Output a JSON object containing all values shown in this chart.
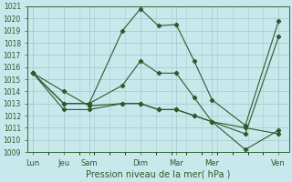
{
  "xlabel": "Pression niveau de la mer( hPa )",
  "background_color": "#c8e8ec",
  "grid_color": "#a8ccd0",
  "line_color": "#2d5a2d",
  "ylim": [
    1009,
    1021
  ],
  "yticks": [
    1009,
    1010,
    1011,
    1012,
    1013,
    1014,
    1015,
    1016,
    1017,
    1018,
    1019,
    1020,
    1021
  ],
  "xtick_labels": [
    "Lun",
    "Jeu",
    "Sam",
    "Dim",
    "Mar",
    "Mer",
    "Ven"
  ],
  "xtick_pos": [
    0,
    12,
    22,
    42,
    56,
    70,
    96
  ],
  "xlim": [
    -2,
    100
  ],
  "series": [
    {
      "x": [
        0,
        12,
        22,
        35,
        42,
        49,
        56,
        63,
        70,
        83,
        96
      ],
      "y": [
        1015.5,
        1013.0,
        1013.0,
        1019.0,
        1020.8,
        1019.4,
        1019.5,
        1016.5,
        1013.3,
        1011.2,
        1019.8
      ]
    },
    {
      "x": [
        0,
        12,
        22,
        35,
        42,
        49,
        56,
        63,
        70,
        83,
        96
      ],
      "y": [
        1015.5,
        1013.0,
        1013.0,
        1014.5,
        1016.5,
        1015.5,
        1015.5,
        1013.5,
        1011.5,
        1010.5,
        1018.5
      ]
    },
    {
      "x": [
        0,
        12,
        22,
        35,
        42,
        49,
        56,
        63,
        70,
        83,
        96
      ],
      "y": [
        1015.5,
        1014.0,
        1012.8,
        1013.0,
        1013.0,
        1012.5,
        1012.5,
        1012.0,
        1011.5,
        1011.0,
        1010.5
      ]
    },
    {
      "x": [
        0,
        12,
        22,
        35,
        42,
        49,
        56,
        63,
        70,
        83,
        96
      ],
      "y": [
        1015.5,
        1012.5,
        1012.5,
        1013.0,
        1013.0,
        1012.5,
        1012.5,
        1012.0,
        1011.5,
        1009.2,
        1010.8
      ]
    }
  ]
}
